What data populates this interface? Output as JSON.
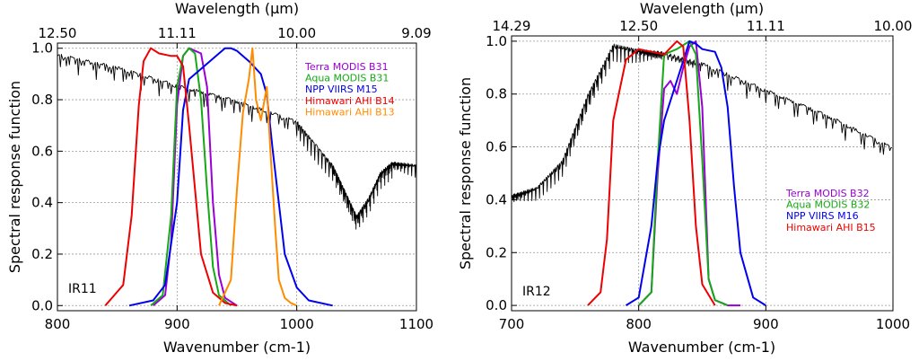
{
  "figure_title": "",
  "chart_data": [
    {
      "type": "line",
      "panel_label": "IR11",
      "xlabel": "Wavenumber (cm-1)",
      "ylabel": "Spectral response function",
      "top_axis_label": "Wavelength (μm)",
      "xlim": [
        800,
        1100
      ],
      "ylim": [
        -0.02,
        1.02
      ],
      "x_ticks": [
        "800",
        "900",
        "1000",
        "1100"
      ],
      "x_tick_values": [
        800,
        900,
        1000,
        1100
      ],
      "y_ticks": [
        "0.0",
        "0.2",
        "0.4",
        "0.6",
        "0.8",
        "1.0"
      ],
      "y_tick_values": [
        0.0,
        0.2,
        0.4,
        0.6,
        0.8,
        1.0
      ],
      "top_ticks": [
        "12.50",
        "11.11",
        "10.00",
        "9.09"
      ],
      "top_tick_values": [
        800,
        900,
        1000,
        1100
      ],
      "grid": true,
      "legend_position": "top-right",
      "series": [
        {
          "name": "Terra MODIS B31",
          "color": "#9a00d6",
          "x": [
            880,
            890,
            895,
            900,
            905,
            910,
            915,
            920,
            925,
            930,
            935,
            940,
            950
          ],
          "y": [
            0.0,
            0.04,
            0.25,
            0.78,
            0.97,
            1.0,
            0.99,
            0.98,
            0.85,
            0.4,
            0.12,
            0.03,
            0.0
          ]
        },
        {
          "name": "Aqua MODIS B31",
          "color": "#16a816",
          "x": [
            878,
            888,
            895,
            900,
            905,
            910,
            915,
            920,
            925,
            930,
            935,
            945
          ],
          "y": [
            0.0,
            0.04,
            0.35,
            0.85,
            0.97,
            1.0,
            0.98,
            0.8,
            0.45,
            0.15,
            0.04,
            0.0
          ]
        },
        {
          "name": "NPP VIIRS M15",
          "color": "#0000ee",
          "x": [
            860,
            880,
            890,
            900,
            905,
            910,
            920,
            930,
            940,
            945,
            950,
            960,
            970,
            975,
            980,
            990,
            1000,
            1010,
            1030
          ],
          "y": [
            0.0,
            0.02,
            0.08,
            0.4,
            0.76,
            0.88,
            0.92,
            0.96,
            1.0,
            1.0,
            0.99,
            0.95,
            0.9,
            0.82,
            0.6,
            0.2,
            0.07,
            0.02,
            0.0
          ]
        },
        {
          "name": "Himawari AHI B14",
          "color": "#ee0000",
          "x": [
            840,
            855,
            862,
            868,
            872,
            878,
            885,
            895,
            900,
            905,
            910,
            920,
            930,
            940,
            950
          ],
          "y": [
            0.0,
            0.08,
            0.35,
            0.78,
            0.95,
            1.0,
            0.98,
            0.97,
            0.97,
            0.93,
            0.7,
            0.2,
            0.05,
            0.01,
            0.0
          ]
        },
        {
          "name": "Himawari AHI B13",
          "color": "#ff8c00",
          "x": [
            935,
            945,
            950,
            955,
            960,
            963,
            966,
            970,
            975,
            978,
            982,
            985,
            990,
            995,
            1000
          ],
          "y": [
            0.0,
            0.1,
            0.45,
            0.75,
            0.88,
            1.0,
            0.8,
            0.72,
            0.85,
            0.6,
            0.3,
            0.1,
            0.03,
            0.01,
            0.0
          ]
        },
        {
          "name": "atmospheric transmittance",
          "color": "#000000",
          "in_legend": false,
          "x": [
            800,
            850,
            900,
            950,
            1000,
            1030,
            1040,
            1050,
            1060,
            1070,
            1080,
            1100
          ],
          "y": [
            0.98,
            0.93,
            0.86,
            0.8,
            0.72,
            0.55,
            0.45,
            0.35,
            0.42,
            0.52,
            0.56,
            0.55
          ]
        }
      ]
    },
    {
      "type": "line",
      "panel_label": "IR12",
      "xlabel": "Wavenumber (cm-1)",
      "ylabel": "Spectral response function",
      "top_axis_label": "Wavelength (μm)",
      "xlim": [
        700,
        1000
      ],
      "ylim": [
        -0.02,
        1.02
      ],
      "x_ticks": [
        "700",
        "800",
        "900",
        "1000"
      ],
      "x_tick_values": [
        700,
        800,
        900,
        1000
      ],
      "y_ticks": [
        "0.0",
        "0.2",
        "0.4",
        "0.6",
        "0.8",
        "1.0"
      ],
      "y_tick_values": [
        0.0,
        0.2,
        0.4,
        0.6,
        0.8,
        1.0
      ],
      "top_ticks": [
        "14.29",
        "12.50",
        "11.11",
        "10.00"
      ],
      "top_tick_values": [
        700,
        800,
        900,
        1000
      ],
      "grid": true,
      "legend_position": "center-right",
      "series": [
        {
          "name": "Terra MODIS B32",
          "color": "#9a00d6",
          "x": [
            800,
            810,
            815,
            820,
            825,
            830,
            835,
            840,
            845,
            850,
            855,
            860,
            870,
            880
          ],
          "y": [
            0.0,
            0.05,
            0.5,
            0.82,
            0.85,
            0.8,
            0.9,
            0.98,
            1.0,
            0.75,
            0.1,
            0.02,
            0.0,
            0.0
          ]
        },
        {
          "name": "Aqua MODIS B32",
          "color": "#16a816",
          "x": [
            800,
            810,
            815,
            820,
            830,
            840,
            845,
            850,
            855,
            860,
            870
          ],
          "y": [
            0.0,
            0.05,
            0.55,
            0.95,
            0.97,
            1.0,
            0.95,
            0.55,
            0.1,
            0.02,
            0.0
          ]
        },
        {
          "name": "NPP VIIRS M16",
          "color": "#0000ee",
          "x": [
            790,
            800,
            810,
            815,
            820,
            830,
            840,
            845,
            850,
            860,
            865,
            870,
            875,
            880,
            890,
            900
          ],
          "y": [
            0.0,
            0.03,
            0.3,
            0.55,
            0.7,
            0.85,
            1.0,
            0.99,
            0.97,
            0.96,
            0.9,
            0.75,
            0.45,
            0.2,
            0.03,
            0.0
          ]
        },
        {
          "name": "Himawari AHI B15",
          "color": "#ee0000",
          "x": [
            760,
            770,
            775,
            780,
            790,
            800,
            810,
            820,
            830,
            835,
            840,
            845,
            850,
            860
          ],
          "y": [
            0.0,
            0.05,
            0.25,
            0.7,
            0.93,
            0.97,
            0.96,
            0.95,
            1.0,
            0.98,
            0.7,
            0.3,
            0.08,
            0.0
          ]
        },
        {
          "name": "atmospheric transmittance",
          "color": "#000000",
          "in_legend": false,
          "x": [
            700,
            720,
            740,
            760,
            780,
            800,
            820,
            850,
            900,
            950,
            1000
          ],
          "y": [
            0.42,
            0.45,
            0.55,
            0.8,
            0.99,
            0.97,
            0.96,
            0.92,
            0.82,
            0.72,
            0.6
          ]
        }
      ]
    }
  ]
}
